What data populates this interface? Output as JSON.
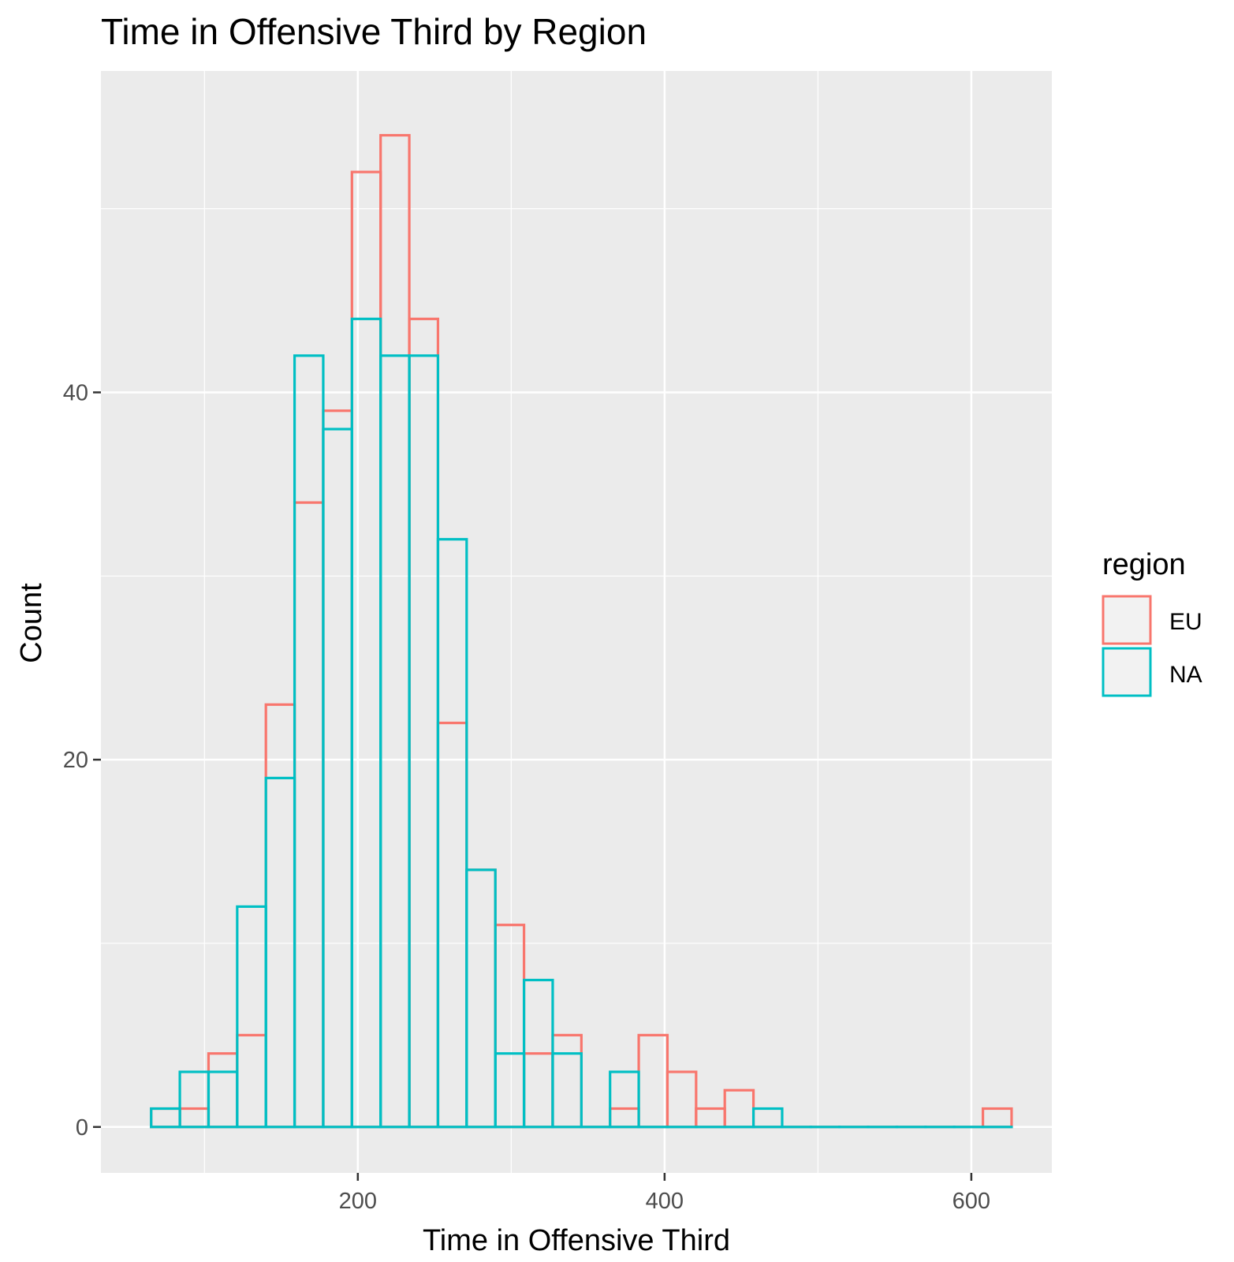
{
  "chart_data": {
    "type": "bar",
    "title": "Time in Offensive Third by Region",
    "xlabel": "Time in Offensive Third",
    "ylabel": "Count",
    "xlim": [
      32.5,
      652.5
    ],
    "ylim": [
      -2.5,
      57.5
    ],
    "x_ticks": [
      200,
      400,
      600
    ],
    "x_tick_labels": [
      "200",
      "400",
      "600"
    ],
    "y_ticks": [
      0,
      20,
      40
    ],
    "y_tick_labels": [
      "0",
      "20",
      "40"
    ],
    "x_minor_breaks": [
      100,
      300,
      500
    ],
    "y_minor_breaks": [
      10,
      30,
      50
    ],
    "grid": true,
    "bin_width": 18.7,
    "bin_centers": [
      74.6,
      93.3,
      112.0,
      130.7,
      149.4,
      168.1,
      186.8,
      205.5,
      224.2,
      242.9,
      261.6,
      280.3,
      299.0,
      317.7,
      336.4,
      355.1,
      373.8,
      392.5,
      411.2,
      429.9,
      448.6,
      467.3,
      486.0,
      504.7,
      523.4,
      542.1,
      560.8,
      579.5,
      598.2,
      616.9
    ],
    "legend": {
      "title": "region",
      "position": "right"
    },
    "series": [
      {
        "name": "EU",
        "color": "#F8766D",
        "values": [
          1,
          1,
          4,
          5,
          23,
          34,
          39,
          52,
          54,
          44,
          22,
          14,
          11,
          4,
          5,
          0,
          1,
          5,
          3,
          1,
          2,
          0,
          0,
          0,
          0,
          0,
          0,
          0,
          0,
          1
        ]
      },
      {
        "name": "NA",
        "color": "#00BFC4",
        "values": [
          1,
          3,
          3,
          12,
          19,
          42,
          38,
          44,
          42,
          42,
          32,
          14,
          4,
          8,
          4,
          0,
          3,
          0,
          0,
          0,
          0,
          1,
          0,
          0,
          0,
          0,
          0,
          0,
          0,
          0
        ]
      }
    ]
  },
  "colors": {
    "panel_background": "#EBEBEB",
    "grid": "#FFFFFF",
    "legend_key_fill": "#F2F2F2"
  }
}
